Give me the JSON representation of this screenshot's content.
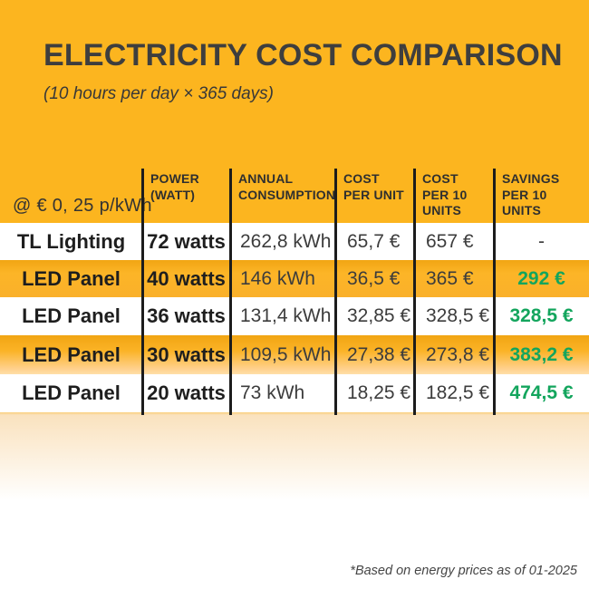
{
  "colors": {
    "background_orange": "#FCB51F",
    "row_orange": "#FBB026",
    "savings_green": "#13A55D",
    "text_dark": "#3C3C3C",
    "divider_black": "#1C1C1C"
  },
  "chart_data": {
    "type": "table",
    "title": "ELECTRICITY COST COMPARISON",
    "subtitle": "(10 hours per day × 365 days)",
    "rate_label": "@ € 0, 25 p/kWh",
    "footnote": "*Based on energy prices as of 01-2025",
    "columns": [
      "POWER\n(WATT)",
      "ANNUAL\nCONSUMPTION",
      "COST\nPER UNIT",
      "COST\nPER 10\nUNITS",
      "SAVINGS\nPER 10\nUNITS"
    ],
    "rows": [
      {
        "name": "TL Lighting",
        "power": "72 watts",
        "annual": "262,8 kWh",
        "cost_unit": "65,7 €",
        "cost_10": "657 €",
        "savings": "-"
      },
      {
        "name": "LED Panel",
        "power": "40 watts",
        "annual": "146 kWh",
        "cost_unit": "36,5 €",
        "cost_10": "365 €",
        "savings": "292 €"
      },
      {
        "name": "LED Panel",
        "power": "36 watts",
        "annual": "131,4 kWh",
        "cost_unit": "32,85 €",
        "cost_10": "328,5 €",
        "savings": "328,5 €"
      },
      {
        "name": "LED Panel",
        "power": "30 watts",
        "annual": "109,5 kWh",
        "cost_unit": "27,38 €",
        "cost_10": "273,8 €",
        "savings": "383,2 €"
      },
      {
        "name": "LED Panel",
        "power": "20 watts",
        "annual": "73 kWh",
        "cost_unit": "18,25 €",
        "cost_10": "182,5 €",
        "savings": "474,5 €"
      }
    ]
  }
}
